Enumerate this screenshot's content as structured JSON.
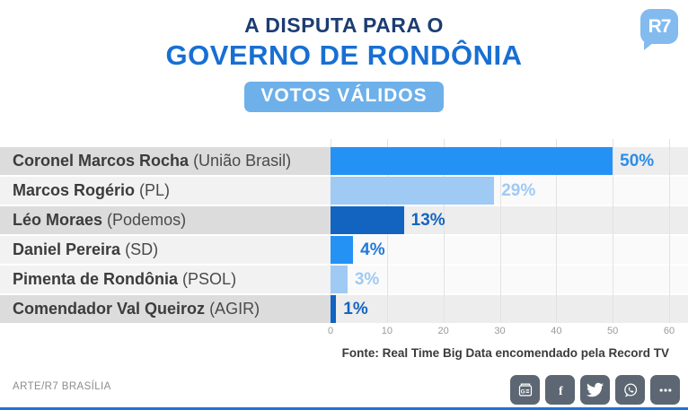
{
  "header": {
    "title_line1": "A DISPUTA PARA O",
    "title_line2": "GOVERNO DE RONDÔNIA",
    "badge": "VOTOS VÁLIDOS",
    "logo_text": "R7"
  },
  "chart_data": {
    "type": "bar",
    "orientation": "horizontal",
    "title": "A disputa para o Governo de Rondônia — Votos válidos",
    "categories": [
      "Coronel Marcos Rocha (União Brasil)",
      "Marcos Rogério (PL)",
      "Léo Moraes (Podemos)",
      "Daniel Pereira (SD)",
      "Pimenta de Rondônia (PSOL)",
      "Comendador Val Queiroz (AGIR)"
    ],
    "values": [
      50,
      29,
      13,
      4,
      3,
      1
    ],
    "value_labels": [
      "50%",
      "29%",
      "13%",
      "4%",
      "3%",
      "1%"
    ],
    "xlim": [
      0,
      60
    ],
    "x_ticks": [
      "0",
      "10",
      "20",
      "30",
      "40",
      "50",
      "60"
    ],
    "grid": true,
    "legend": false,
    "rows": [
      {
        "name": "Coronel Marcos Rocha",
        "party": "(União Brasil)",
        "value": 50,
        "label": "50%",
        "bar_color": "#2492f4",
        "label_color": "#2b8de8",
        "shade": "dark"
      },
      {
        "name": "Marcos Rogério",
        "party": "(PL)",
        "value": 29,
        "label": "29%",
        "bar_color": "#9fcaf3",
        "label_color": "#9fcaf3",
        "shade": "light"
      },
      {
        "name": "Léo Moraes",
        "party": "(Podemos)",
        "value": 13,
        "label": "13%",
        "bar_color": "#1364c1",
        "label_color": "#1364c1",
        "shade": "dark"
      },
      {
        "name": "Daniel Pereira",
        "party": "(SD)",
        "value": 4,
        "label": "4%",
        "bar_color": "#2492f4",
        "label_color": "#1e7ad9",
        "shade": "light"
      },
      {
        "name": "Pimenta de Rondônia",
        "party": "(PSOL)",
        "value": 3,
        "label": "3%",
        "bar_color": "#9fcaf3",
        "label_color": "#9fcaf3",
        "shade": "light"
      },
      {
        "name": "Comendador Val Queiroz",
        "party": "(AGIR)",
        "value": 1,
        "label": "1%",
        "bar_color": "#1364c1",
        "label_color": "#1364c1",
        "shade": "dark"
      }
    ]
  },
  "source": "Fonte: Real Time Big Data encomendado pela Record TV",
  "footer": {
    "credit": "ARTE/R7 BRASÍLIA"
  },
  "social_icons": [
    "google-news",
    "facebook",
    "twitter",
    "whatsapp",
    "more"
  ],
  "colors": {
    "title_primary": "#1c3c72",
    "title_accent": "#186fd3",
    "badge_bg": "#6db0ea",
    "logo_bg": "#83bbee",
    "row_dark_label": "#dcdcdc",
    "row_dark_plot": "#ededed",
    "row_light_label": "#f2f2f2",
    "row_light_plot": "#fafafa",
    "gridline": "#e2e2e2",
    "tick": "#9a9a9a",
    "social_bg": "#5c6773",
    "bottom_strip": "#1f72d6"
  }
}
